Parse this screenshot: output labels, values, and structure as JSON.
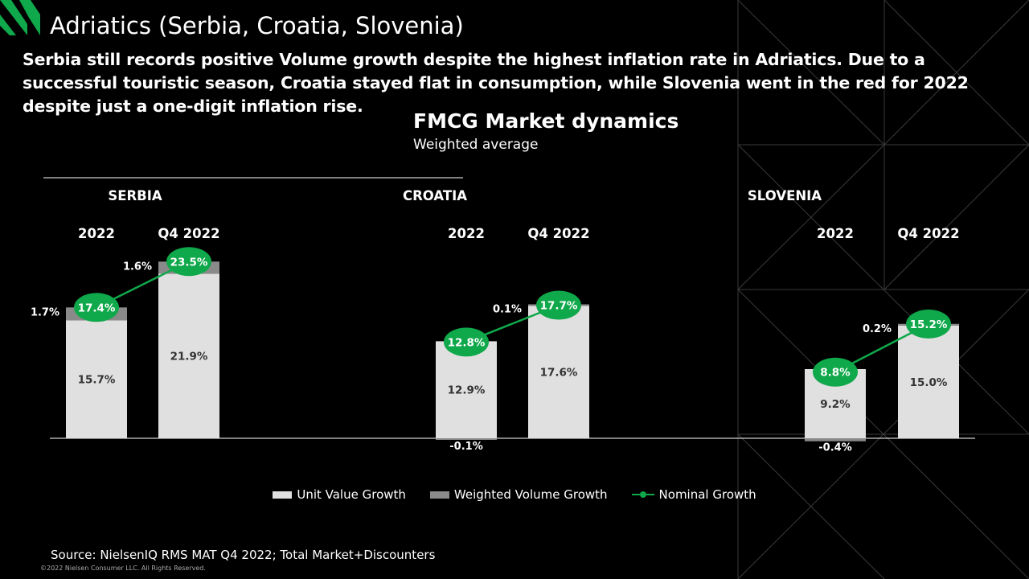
{
  "header": {
    "title": "Adriatics (Serbia, Croatia, Slovenia)",
    "summary": "Serbia still records positive Volume growth despite the highest inflation rate in Adriatics. Due to a successful touristic season, Croatia stayed flat in consumption, while Slovenia went in the red for 2022 despite just a one-digit inflation rise."
  },
  "chart_data": {
    "type": "bar",
    "title": "FMCG Market dynamics",
    "subtitle": "Weighted average",
    "groups": [
      {
        "name": "SERBIA",
        "periods": [
          {
            "label": "2022",
            "unit_value": 15.7,
            "unit_value_label": "15.7%",
            "volume": 1.7,
            "volume_label": "1.7%",
            "nominal": 17.4,
            "nominal_label": "17.4%"
          },
          {
            "label": "Q4 2022",
            "unit_value": 21.9,
            "unit_value_label": "21.9%",
            "volume": 1.6,
            "volume_label": "1.6%",
            "nominal": 23.5,
            "nominal_label": "23.5%"
          }
        ]
      },
      {
        "name": "CROATIA",
        "periods": [
          {
            "label": "2022",
            "unit_value": 12.9,
            "unit_value_label": "12.9%",
            "volume": -0.1,
            "volume_label": "-0.1%",
            "nominal": 12.8,
            "nominal_label": "12.8%"
          },
          {
            "label": "Q4 2022",
            "unit_value": 17.6,
            "unit_value_label": "17.6%",
            "volume": 0.1,
            "volume_label": "0.1%",
            "nominal": 17.7,
            "nominal_label": "17.7%"
          }
        ]
      },
      {
        "name": "SLOVENIA",
        "periods": [
          {
            "label": "2022",
            "unit_value": 9.2,
            "unit_value_label": "9.2%",
            "volume": -0.4,
            "volume_label": "-0.4%",
            "nominal": 8.8,
            "nominal_label": "8.8%"
          },
          {
            "label": "Q4 2022",
            "unit_value": 15.0,
            "unit_value_label": "15.0%",
            "volume": 0.2,
            "volume_label": "0.2%",
            "nominal": 15.2,
            "nominal_label": "15.2%"
          }
        ]
      }
    ],
    "legend": [
      {
        "name": "Unit Value Growth",
        "color": "#e0e0e0"
      },
      {
        "name": "Weighted Volume Growth",
        "color": "#8a8a8a"
      },
      {
        "name": "Nominal Growth",
        "color": "#0fa84a"
      }
    ]
  },
  "footer": {
    "source": "Source: NielsenIQ RMS MAT Q4 2022; Total Market+Discounters",
    "copyright": "©2022 Nielsen Consumer LLC. All Rights Reserved."
  },
  "colors": {
    "background": "#000000",
    "brand_green": "#0fa84a",
    "unit_value": "#e0e0e0",
    "volume": "#8a8a8a"
  }
}
